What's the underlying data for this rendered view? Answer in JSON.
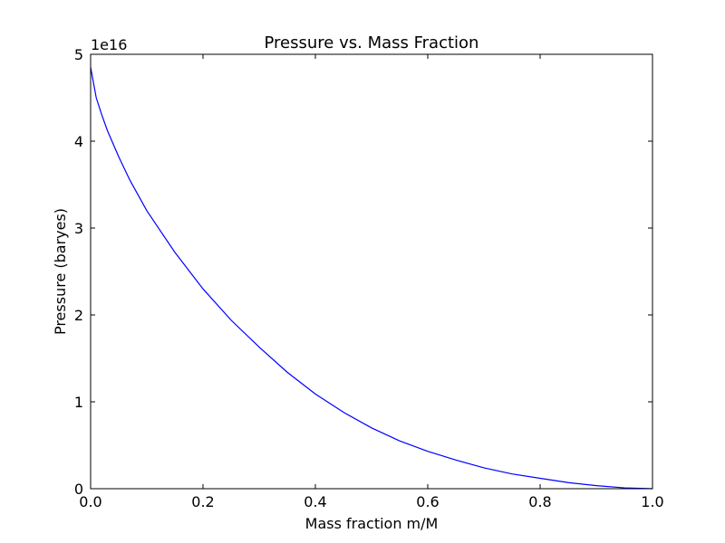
{
  "chart_data": {
    "type": "line",
    "title": "Pressure vs. Mass Fraction",
    "xlabel": "Mass fraction m/M",
    "ylabel": "Pressure (baryes)",
    "y_offset_label": "1e16",
    "xlim": [
      0.0,
      1.0
    ],
    "ylim": [
      0,
      5
    ],
    "y_scale_factor": 1e+16,
    "x_ticks": [
      "0.0",
      "0.2",
      "0.4",
      "0.6",
      "0.8",
      "1.0"
    ],
    "y_ticks": [
      "0",
      "1",
      "2",
      "3",
      "4",
      "5"
    ],
    "grid": false,
    "line_color": "#0000ff",
    "series": [
      {
        "x": [
          0.0,
          0.01,
          0.02,
          0.03,
          0.05,
          0.07,
          0.1,
          0.15,
          0.2,
          0.25,
          0.3,
          0.35,
          0.4,
          0.45,
          0.5,
          0.55,
          0.6,
          0.65,
          0.7,
          0.75,
          0.8,
          0.85,
          0.9,
          0.95,
          1.0
        ],
        "y": [
          4.85,
          4.5,
          4.3,
          4.12,
          3.82,
          3.55,
          3.2,
          2.72,
          2.3,
          1.94,
          1.63,
          1.34,
          1.09,
          0.88,
          0.7,
          0.55,
          0.43,
          0.33,
          0.24,
          0.17,
          0.12,
          0.07,
          0.035,
          0.01,
          0.0
        ]
      }
    ]
  }
}
